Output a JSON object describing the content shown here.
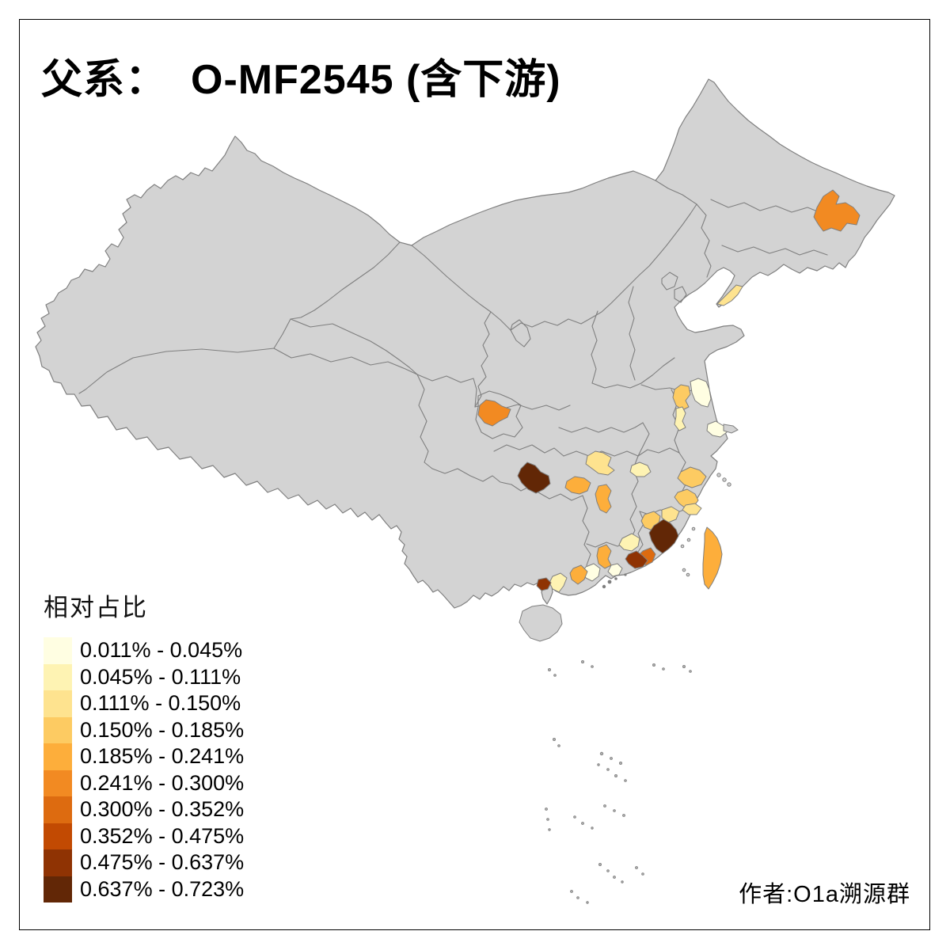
{
  "title": {
    "prefix": "父系：",
    "main": "O-MF2545 (含下游)"
  },
  "legend": {
    "title": "相对占比",
    "classes": [
      {
        "label": "0.011% - 0.045%",
        "color": "#FFFEE2"
      },
      {
        "label": "0.045% - 0.111%",
        "color": "#FEF3B3"
      },
      {
        "label": "0.111% - 0.150%",
        "color": "#FEE38F"
      },
      {
        "label": "0.150% - 0.185%",
        "color": "#FDCB62"
      },
      {
        "label": "0.185% - 0.241%",
        "color": "#FDAE3B"
      },
      {
        "label": "0.241% - 0.300%",
        "color": "#F28A22"
      },
      {
        "label": "0.300% - 0.352%",
        "color": "#DD6B10"
      },
      {
        "label": "0.352% - 0.475%",
        "color": "#C24A02"
      },
      {
        "label": "0.475% - 0.637%",
        "color": "#8F3303"
      },
      {
        "label": "0.637% - 0.723%",
        "color": "#622706"
      }
    ]
  },
  "author": {
    "text": "作者:O1a溯源群"
  },
  "map": {
    "background": "#FFFFFF",
    "land_fill": "#D3D3D3",
    "border_color": "#7F7F7F",
    "frame_color": "#000000",
    "regions": [
      {
        "id": "northeast-jiamusi",
        "class_index": 5
      },
      {
        "id": "liaodong-dalian",
        "class_index": 2
      },
      {
        "id": "jiangsu-north",
        "class_index": 3
      },
      {
        "id": "jiangsu-yancheng",
        "class_index": 0
      },
      {
        "id": "jiangsu-yangzhou",
        "class_index": 1
      },
      {
        "id": "jiangsu-nantong",
        "class_index": 0
      },
      {
        "id": "chongqing",
        "class_index": 5
      },
      {
        "id": "hubei-south",
        "class_index": 2
      },
      {
        "id": "anhui-south",
        "class_index": 1
      },
      {
        "id": "guizhou-center",
        "class_index": 9
      },
      {
        "id": "hunan-center",
        "class_index": 4
      },
      {
        "id": "hunan-south",
        "class_index": 4
      },
      {
        "id": "zhejiang-north",
        "class_index": 3
      },
      {
        "id": "zhejiang-south",
        "class_index": 3
      },
      {
        "id": "fujian-northeast",
        "class_index": 2
      },
      {
        "id": "fujian-coast-north",
        "class_index": 2
      },
      {
        "id": "fujian-west",
        "class_index": 3
      },
      {
        "id": "fujian-southeast",
        "class_index": 9
      },
      {
        "id": "fujian-southwest",
        "class_index": 6
      },
      {
        "id": "guangdong-chaoshan",
        "class_index": 8
      },
      {
        "id": "guangdong-meizhou",
        "class_index": 1
      },
      {
        "id": "guangdong-heyuan",
        "class_index": 4
      },
      {
        "id": "guangdong-huizhou",
        "class_index": 0
      },
      {
        "id": "guangdong-guangzhou",
        "class_index": 0
      },
      {
        "id": "guangdong-west",
        "class_index": 4
      },
      {
        "id": "guangdong-jiangmen",
        "class_index": 1
      },
      {
        "id": "guangdong-zhanjiang",
        "class_index": 8
      },
      {
        "id": "taiwan",
        "class_index": 4
      }
    ]
  }
}
